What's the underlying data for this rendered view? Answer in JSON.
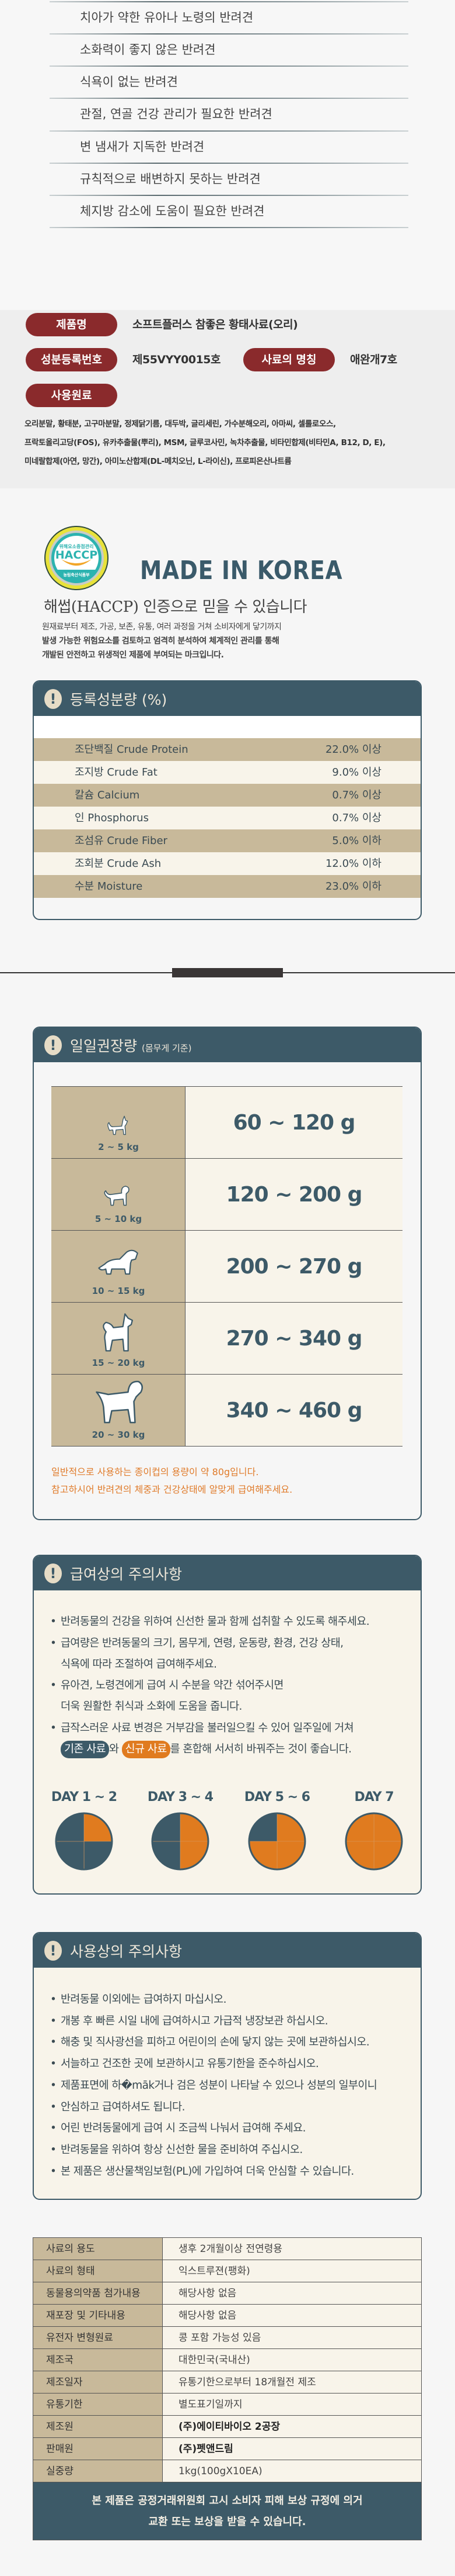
{
  "checklist": [
    "치아가 약한 유아나 노령의 반려견",
    "소화력이 좋지 않은 반려견",
    "식욕이 없는 반려견",
    "관절, 연골 건강 관리가 필요한 반려견",
    "변 냄새가 지독한 반려견",
    "규칙적으로 배변하지 못하는 반려견",
    "체지방 감소에 도움이 필요한 반려견"
  ],
  "product": {
    "name_label": "제품명",
    "name": "소프트플러스 참좋은 황태사료(오리)",
    "reg_label": "성분등록번호",
    "reg": "제55VYY0015호",
    "feed_name_label": "사료의 명칭",
    "feed_name": "애완개7호",
    "ingredients_label": "사용원료",
    "ingredients": [
      "오리분말, 황태분, 고구마분말, 정제닭기름, 대두박, 글리세린, 가수분해오리, 아마씨, 셀룰로오스,",
      "프락토올리고당(FOS), 유카추출물(뿌리), MSM, 글루코사민, 녹차추출물, 비타민합제(비타민A, B12, D, E),",
      "미네랄합제(아연, 망간), 아미노산합제(DL-메치오닌, L-라이신), 프로피온산나트륨"
    ]
  },
  "haccp": {
    "logo_top": "위해요소중점관리",
    "logo_main": "HACCP",
    "logo_bottom": "농림축산식품부",
    "made_in": "MADE IN KOREA",
    "heading": "해썹(HACCP) 인증으로 믿을 수 있습니다",
    "desc": [
      "원재료부터 제조, 가공, 보존, 유통, 여러 과정을 거쳐 소비자에게 닿기까지",
      "발생 가능한 위험요소를 검토하고 엄격히 분석하여 체계적인 관리를 통해",
      "개발된 안전하고 위생적인 제품에 부여되는 마크입니다."
    ]
  },
  "composition": {
    "title": "등록성분량 (%)",
    "rows": [
      {
        "name": "조단백질 Crude Protein",
        "value": "22.0% 이상"
      },
      {
        "name": "조지방 Crude Fat",
        "value": "9.0% 이상"
      },
      {
        "name": "칼슘 Calcium",
        "value": "0.7% 이상"
      },
      {
        "name": "인 Phosphorus",
        "value": "0.7% 이상"
      },
      {
        "name": "조섬유 Crude Fiber",
        "value": "5.0% 이하"
      },
      {
        "name": "조회분 Crude Ash",
        "value": "12.0% 이하"
      },
      {
        "name": "수분 Moisture",
        "value": "23.0% 이하"
      }
    ]
  },
  "feeding": {
    "title": "일일권장량",
    "title_sub": "(몸무게 기준)",
    "rows": [
      {
        "weight": "2 ~ 5 kg",
        "amount": "60 ~ 120 g",
        "icon": "small-dog-icon"
      },
      {
        "weight": "5 ~ 10 kg",
        "amount": "120 ~ 200 g",
        "icon": "poodle-dog-icon"
      },
      {
        "weight": "10 ~ 15 kg",
        "amount": "200 ~ 270 g",
        "icon": "spaniel-dog-icon"
      },
      {
        "weight": "15 ~ 20 kg",
        "amount": "270 ~ 340 g",
        "icon": "spitz-dog-icon"
      },
      {
        "weight": "20 ~ 30 kg",
        "amount": "340 ~ 460 g",
        "icon": "large-dog-icon"
      }
    ],
    "notes": [
      "일반적으로 사용하는 종이컵의 용량이 약 80g입니다.",
      "참고하시어 반려견의 체중과 건강상태에 알맞게 급여해주세요."
    ]
  },
  "feeding_cautions": {
    "title": "급여상의 주의사항",
    "items": [
      "반려동물의 건강을 위하여 신선한 물과 함께 섭취할 수 있도록 해주세요.",
      "급여량은 반려동물의 크기, 몸무게, 연령, 운동량, 환경, 건강 상태,",
      "식욕에 따라 조절하여 급여해주세요.",
      "유아견, 노령견에게 급여 시 수분을 약간 섞어주시면",
      "더욱 원활한 취식과 소화에 도움을 줍니다.",
      "급작스러운 사료 변경은 거부감을 불러일으킬 수 있어 일주일에 거쳐"
    ],
    "old_food": "기존 사료",
    "joiner": "와",
    "new_food": "신규 사료",
    "tail": "를 혼합해 서서히 바꿔주는 것이 좋습니다."
  },
  "chart_data": {
    "type": "pie",
    "categories": [
      "DAY 1 ~ 2",
      "DAY 3 ~ 4",
      "DAY 5 ~ 6",
      "DAY 7"
    ],
    "series": [
      {
        "name": "신규 사료",
        "values": [
          0.25,
          0.5,
          0.75,
          1.0
        ]
      },
      {
        "name": "기존 사료",
        "values": [
          0.75,
          0.5,
          0.25,
          0.0
        ]
      }
    ],
    "colors": {
      "old": "#3d5a68",
      "new": "#e07b1f"
    }
  },
  "usage_cautions": {
    "title": "사용상의 주의사항",
    "items": [
      "반려동물 이외에는 급여하지 마십시오.",
      "개봉 후 빠른 시일 내에 급여하시고 가급적 냉장보관 하십시오.",
      "해충 및 직사광선을 피하고 어린이의 손에 닿지 않는 곳에 보관하십시오.",
      "서늘하고 건조한 곳에 보관하시고 유통기한을 준수하십시오.",
      "제품표면에 하�māk거나 검은 성분이 나타날 수 있으나 성분의 일부이니",
      "안심하고 급여하셔도 됩니다.",
      "어린 반려동물에게 급여 시 조금씩 나눠서 급여해 주세요.",
      "반려동물을 위하여 항상 신선한 물을 준비하여 주십시오.",
      "본 제품은 생산물책임보험(PL)에 가입하여 더욱 안심할 수 있습니다."
    ]
  },
  "info_table": [
    {
      "k": "사료의 용도",
      "v": "생후 2개월이상 전연령용"
    },
    {
      "k": "사료의 형태",
      "v": "익스트루젼(팽화)"
    },
    {
      "k": "동물용의약품 첨가내용",
      "v": "해당사항 없음"
    },
    {
      "k": "재포장 및 기타내용",
      "v": "해당사항 없음"
    },
    {
      "k": "유전자 변형원료",
      "v": "콩 포함 가능성 있음"
    },
    {
      "k": "제조국",
      "v": "대한민국(국내산)"
    },
    {
      "k": "제조일자",
      "v": "유통기한으로부터 18개월전 제조"
    },
    {
      "k": "유통기한",
      "v": "별도표기일까지"
    },
    {
      "k": "제조원",
      "v": "(주)에이티바이오 2공장",
      "bold": true
    },
    {
      "k": "판매원",
      "v": "(주)펫앤드림",
      "bold": true
    },
    {
      "k": "실중량",
      "v": "1kg(100gX10EA)"
    }
  ],
  "banner": [
    "본 제품은 공정거래위원회 고시 소비자 피해 보상 규정에 의거",
    "교환 또는 보상을 받을 수 있습니다."
  ],
  "colors": {
    "brand_dark": "#3d5a68",
    "pill": "#8a2a2c",
    "tan": "#c8b99a",
    "cream": "#f8f4ea",
    "accent": "#e07b2a"
  }
}
